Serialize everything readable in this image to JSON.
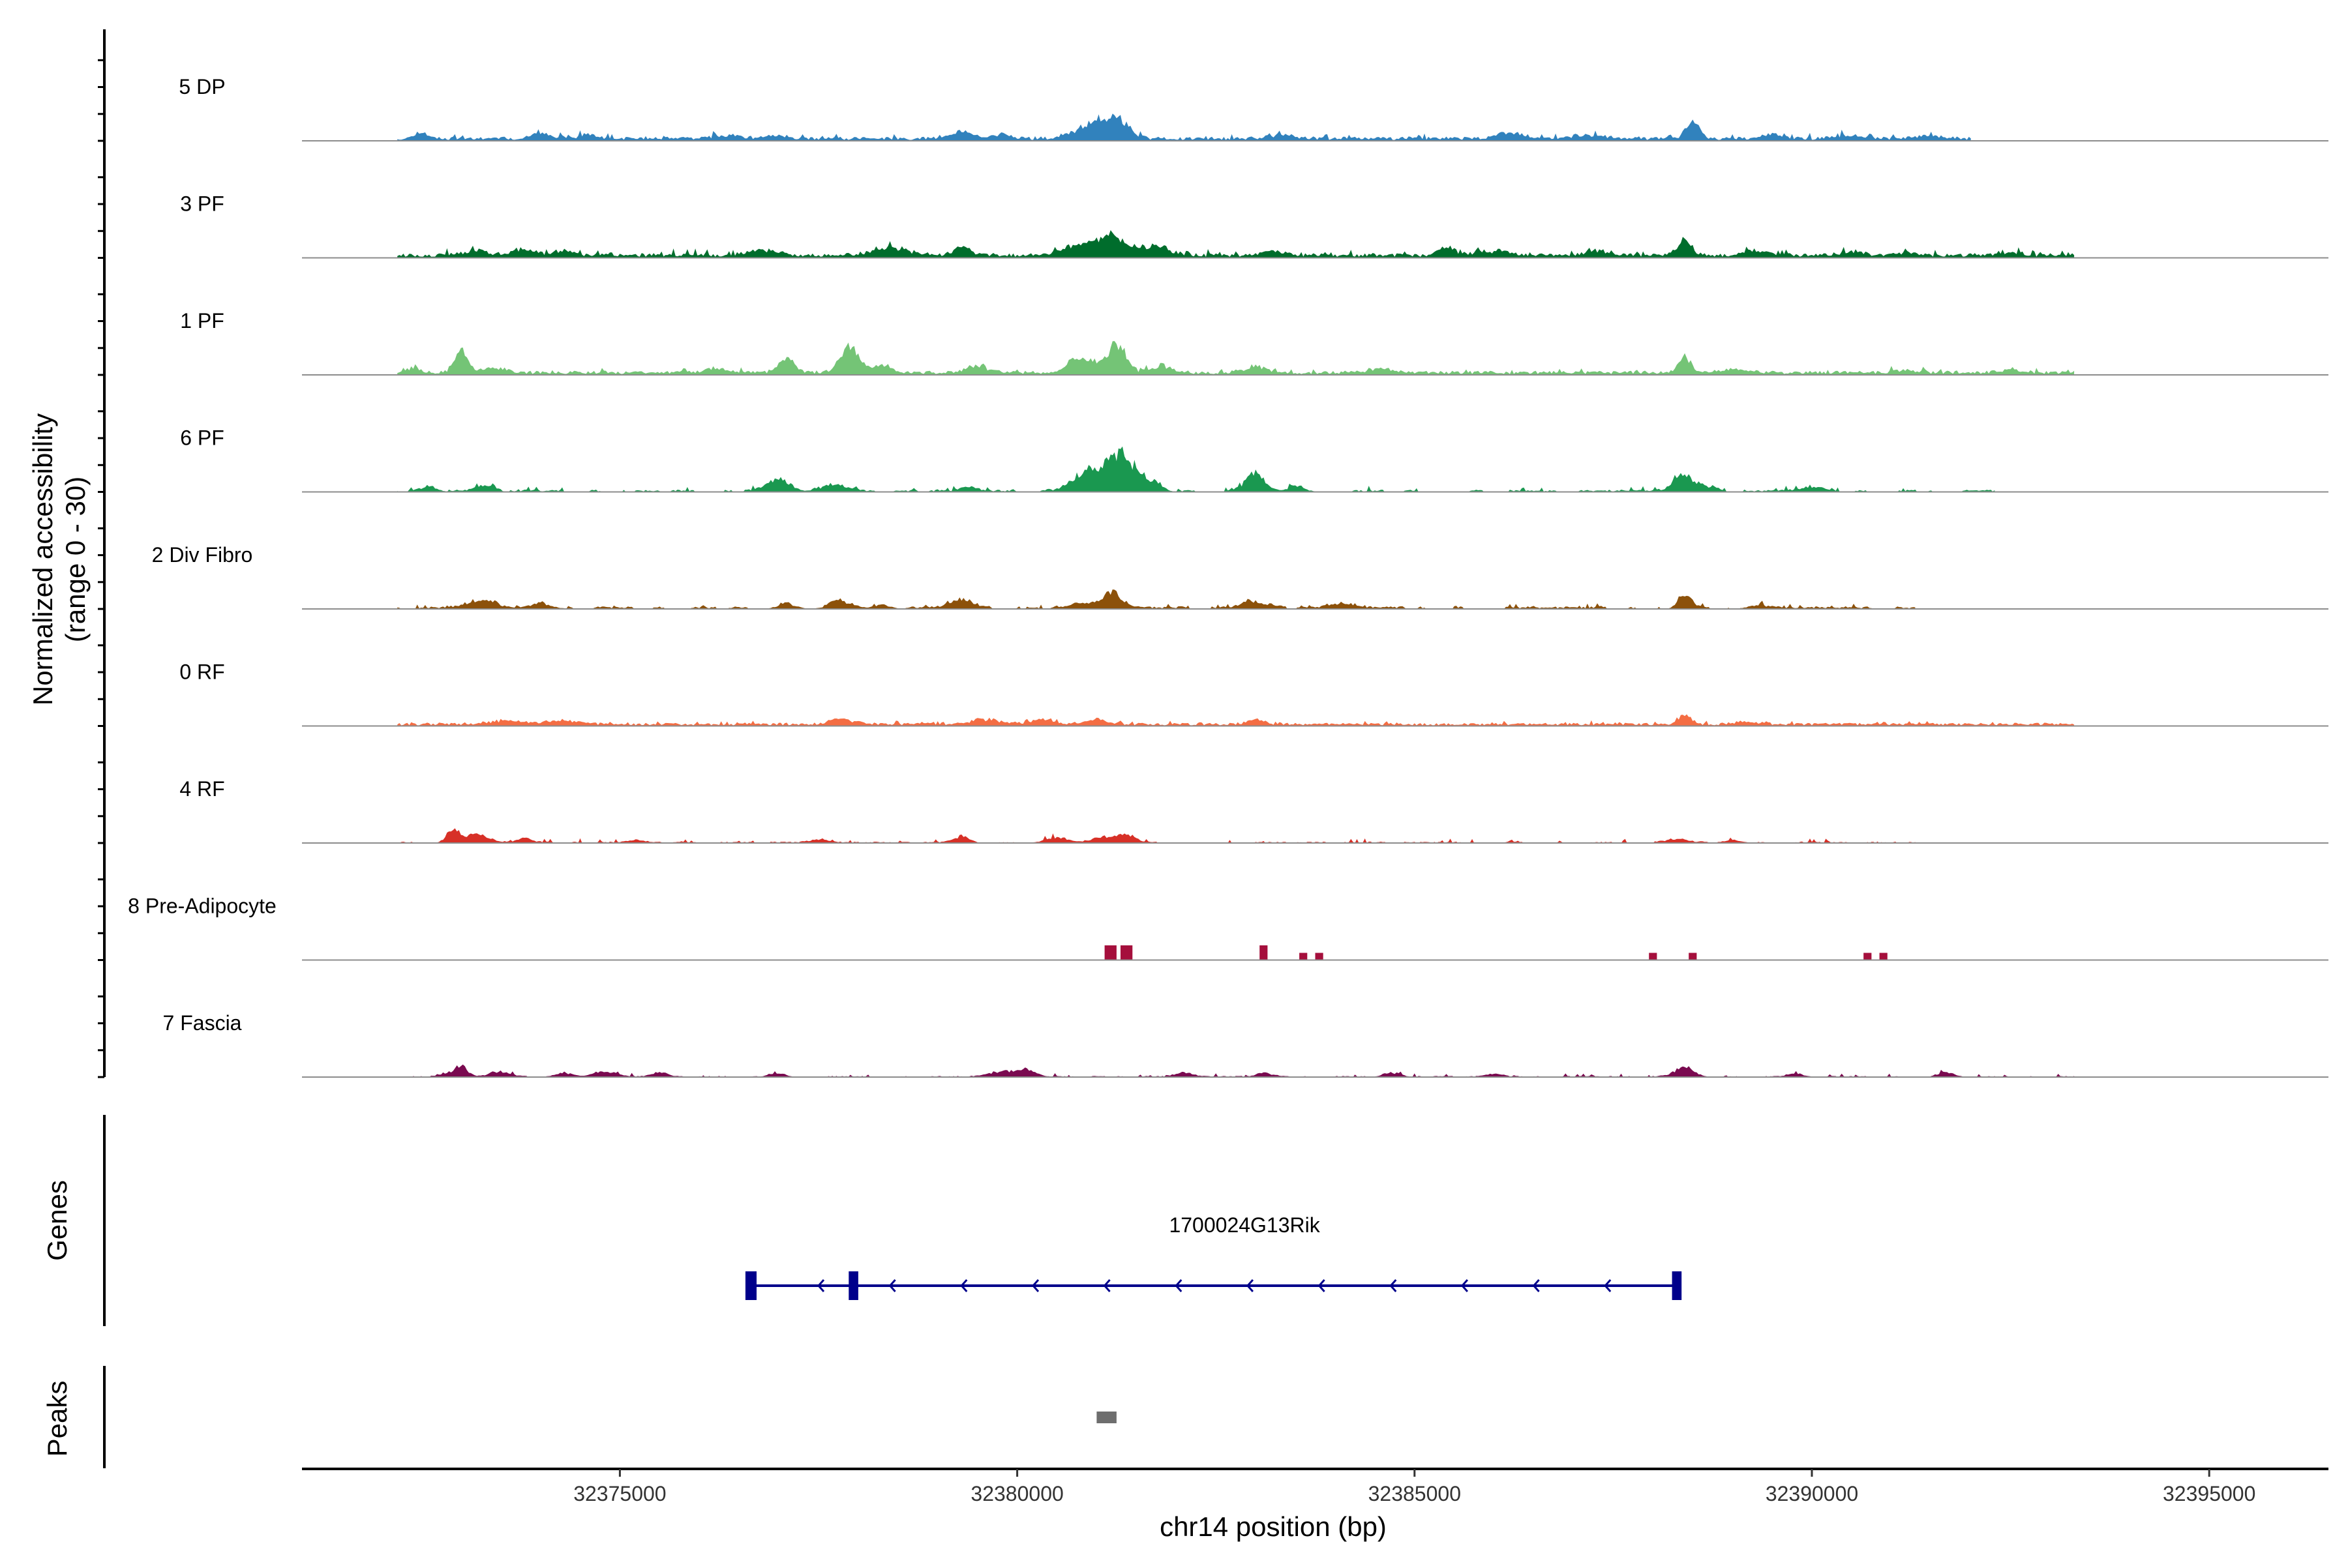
{
  "chart_data": {
    "type": "area",
    "title": "",
    "ylabel_line1": "Normalized accessibility",
    "ylabel_line2": "(range 0 - 30)",
    "y_range": [
      0,
      30
    ],
    "xlabel": "chr14 position (bp)",
    "xlim": [
      32371000,
      32396500
    ],
    "x_ticks": [
      32375000,
      32380000,
      32385000,
      32390000,
      32395000
    ],
    "x_tick_labels": [
      "32375000",
      "32380000",
      "32385000",
      "32390000",
      "32395000"
    ],
    "genes_panel_label": "Genes",
    "peaks_panel_label": "Peaks",
    "tracks": [
      {
        "name": "5 DP",
        "color": "#3182BD",
        "seed": 11,
        "range": [
          32372200,
          32392000
        ],
        "base": 0.9,
        "noise": 0.9,
        "sparse": false,
        "peaks": [
          [
            32372500,
            1.8,
            80
          ],
          [
            32374000,
            1.6,
            120
          ],
          [
            32374600,
            1.2,
            100
          ],
          [
            32376400,
            1.0,
            150
          ],
          [
            32377000,
            1.0,
            120
          ],
          [
            32379300,
            2.5,
            120
          ],
          [
            32379800,
            1.2,
            100
          ],
          [
            32381000,
            5.5,
            220
          ],
          [
            32381300,
            4.0,
            120
          ],
          [
            32383300,
            1.0,
            150
          ],
          [
            32386200,
            2.0,
            150
          ],
          [
            32387200,
            1.0,
            200
          ],
          [
            32388500,
            5.5,
            80
          ],
          [
            32389500,
            1.2,
            120
          ],
          [
            32390500,
            1.0,
            150
          ],
          [
            32391500,
            1.0,
            150
          ]
        ]
      },
      {
        "name": "3 PF",
        "color": "#006D2C",
        "seed": 23,
        "range": [
          32372200,
          32393300
        ],
        "base": 1.0,
        "noise": 1.0,
        "sparse": false,
        "peaks": [
          [
            32373200,
            1.4,
            150
          ],
          [
            32373800,
            2.0,
            150
          ],
          [
            32374300,
            1.5,
            120
          ],
          [
            32376800,
            1.5,
            200
          ],
          [
            32378400,
            2.2,
            250
          ],
          [
            32379300,
            2.4,
            100
          ],
          [
            32380800,
            3.5,
            200
          ],
          [
            32381200,
            5.5,
            150
          ],
          [
            32381700,
            3.0,
            200
          ],
          [
            32383200,
            1.5,
            150
          ],
          [
            32385400,
            2.3,
            100
          ],
          [
            32386000,
            1.4,
            200
          ],
          [
            32387300,
            1.5,
            150
          ],
          [
            32388400,
            6.0,
            80
          ],
          [
            32389300,
            1.2,
            150
          ],
          [
            32390500,
            1.2,
            150
          ],
          [
            32391200,
            0.8,
            150
          ],
          [
            32392500,
            0.8,
            150
          ]
        ]
      },
      {
        "name": "1 PF",
        "color": "#74C476",
        "seed": 37,
        "range": [
          32372200,
          32393300
        ],
        "base": 0.9,
        "noise": 0.8,
        "sparse": false,
        "peaks": [
          [
            32372400,
            1.5,
            80
          ],
          [
            32373000,
            6.5,
            80
          ],
          [
            32373400,
            1.5,
            150
          ],
          [
            32376200,
            1.2,
            150
          ],
          [
            32377100,
            4.0,
            100
          ],
          [
            32377900,
            8.0,
            120
          ],
          [
            32378300,
            2.5,
            100
          ],
          [
            32379500,
            1.8,
            150
          ],
          [
            32380800,
            5.0,
            150
          ],
          [
            32381250,
            9.0,
            110
          ],
          [
            32381800,
            1.8,
            150
          ],
          [
            32383000,
            1.8,
            150
          ],
          [
            32384600,
            1.0,
            200
          ],
          [
            32388400,
            4.5,
            80
          ],
          [
            32389000,
            1.0,
            200
          ],
          [
            32391200,
            0.8,
            120
          ],
          [
            32392500,
            0.8,
            150
          ]
        ]
      },
      {
        "name": "6 PF",
        "color": "#1A9850",
        "seed": 41,
        "range": [
          32372200,
          32392300
        ],
        "base": 0.5,
        "noise": 0.8,
        "sparse": true,
        "peaks": [
          [
            32372600,
            1.6,
            100
          ],
          [
            32373300,
            1.6,
            120
          ],
          [
            32377000,
            3.5,
            150
          ],
          [
            32377700,
            2.5,
            150
          ],
          [
            32379400,
            1.2,
            100
          ],
          [
            32380900,
            7.0,
            200
          ],
          [
            32381300,
            10.0,
            150
          ],
          [
            32381600,
            4.0,
            150
          ],
          [
            32383000,
            5.5,
            120
          ],
          [
            32383500,
            1.5,
            120
          ],
          [
            32388350,
            4.5,
            120
          ],
          [
            32388600,
            2.0,
            150
          ],
          [
            32390000,
            1.0,
            150
          ]
        ]
      },
      {
        "name": "2 Div Fibro",
        "color": "#8C510A",
        "seed": 53,
        "range": [
          32372200,
          32391300
        ],
        "base": 0.6,
        "noise": 0.7,
        "sparse": true,
        "peaks": [
          [
            32373300,
            2.0,
            200
          ],
          [
            32374000,
            1.5,
            150
          ],
          [
            32377100,
            1.5,
            120
          ],
          [
            32377800,
            2.2,
            150
          ],
          [
            32378300,
            1.3,
            100
          ],
          [
            32379300,
            2.5,
            150
          ],
          [
            32380800,
            2.0,
            150
          ],
          [
            32381200,
            4.5,
            120
          ],
          [
            32383000,
            2.3,
            150
          ],
          [
            32384100,
            1.3,
            150
          ],
          [
            32388400,
            5.0,
            80
          ],
          [
            32389300,
            1.0,
            120
          ]
        ]
      },
      {
        "name": "0 RF",
        "color": "#F46D43",
        "seed": 67,
        "range": [
          32372200,
          32393300
        ],
        "base": 0.7,
        "noise": 0.5,
        "sparse": false,
        "peaks": [
          [
            32373600,
            1.2,
            200
          ],
          [
            32374300,
            1.0,
            200
          ],
          [
            32377800,
            1.5,
            150
          ],
          [
            32379600,
            1.5,
            200
          ],
          [
            32380300,
            1.5,
            150
          ],
          [
            32381000,
            1.5,
            150
          ],
          [
            32383000,
            1.4,
            100
          ],
          [
            32388400,
            3.0,
            80
          ],
          [
            32389200,
            0.8,
            150
          ]
        ]
      },
      {
        "name": "4 RF",
        "color": "#D73027",
        "seed": 79,
        "range": [
          32372200,
          32391300
        ],
        "base": 0.3,
        "noise": 0.7,
        "sparse": true,
        "peaks": [
          [
            32372900,
            4.0,
            80
          ],
          [
            32373200,
            3.0,
            150
          ],
          [
            32373800,
            1.5,
            100
          ],
          [
            32375200,
            1.0,
            100
          ],
          [
            32377500,
            1.2,
            100
          ],
          [
            32379300,
            2.0,
            100
          ],
          [
            32380500,
            1.5,
            150
          ],
          [
            32381100,
            2.0,
            150
          ],
          [
            32381400,
            2.0,
            100
          ],
          [
            32388300,
            1.0,
            150
          ],
          [
            32389000,
            0.8,
            120
          ]
        ]
      },
      {
        "name": "8 Pre-Adipocyte",
        "color": "#A50F3C",
        "seed": 83,
        "range": [
          32380900,
          32391000
        ],
        "base": 0,
        "noise": 0,
        "sparse": true,
        "bars": [
          [
            32381100,
            32381250,
            4.5
          ],
          [
            32381300,
            32381450,
            4.5
          ],
          [
            32383050,
            32383150,
            4.5
          ],
          [
            32383550,
            32383650,
            2.2
          ],
          [
            32383750,
            32383850,
            2.2
          ],
          [
            32387950,
            32388050,
            2.2
          ],
          [
            32388450,
            32388550,
            2.2
          ],
          [
            32390650,
            32390750,
            2.2
          ],
          [
            32390850,
            32390950,
            2.2
          ]
        ]
      },
      {
        "name": "7 Fascia",
        "color": "#7A0A50",
        "seed": 97,
        "range": [
          32372400,
          32393300
        ],
        "base": 0.25,
        "noise": 0.6,
        "sparse": true,
        "peaks": [
          [
            32372800,
            1.2,
            80
          ],
          [
            32373000,
            3.5,
            80
          ],
          [
            32373500,
            1.3,
            120
          ],
          [
            32374300,
            1.2,
            120
          ],
          [
            32374800,
            1.5,
            150
          ],
          [
            32375500,
            1.3,
            100
          ],
          [
            32377000,
            1.0,
            100
          ],
          [
            32379800,
            1.5,
            150
          ],
          [
            32380100,
            2.2,
            120
          ],
          [
            32382100,
            1.4,
            100
          ],
          [
            32383100,
            1.4,
            100
          ],
          [
            32384700,
            1.4,
            100
          ],
          [
            32386000,
            0.8,
            100
          ],
          [
            32388400,
            3.0,
            120
          ],
          [
            32389800,
            1.0,
            100
          ],
          [
            32391700,
            1.5,
            100
          ]
        ]
      }
    ],
    "genes": [
      {
        "name": "1700024G13Rik",
        "strand": "-",
        "start": 32376600,
        "end": 32388300,
        "exons": [
          [
            32376580,
            32376720
          ],
          [
            32377880,
            32378000
          ],
          [
            32388240,
            32388360
          ]
        ]
      }
    ],
    "peaks": [
      {
        "start": 32381000,
        "end": 32381250
      }
    ]
  }
}
